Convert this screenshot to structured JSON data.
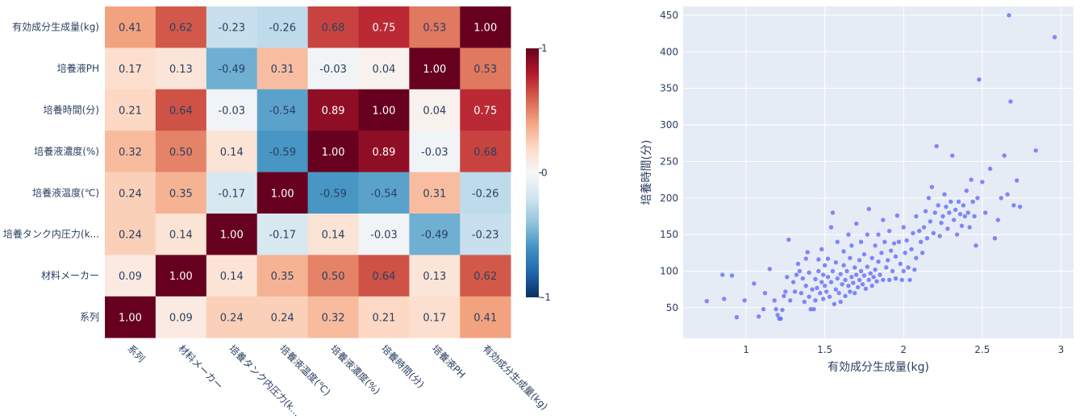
{
  "chart_data": [
    {
      "type": "heatmap",
      "title": "",
      "x_labels": [
        "系列",
        "材料メーカー",
        "培養タンク内圧力(k...",
        "培養液温度(℃)",
        "培養液濃度(%)",
        "培養時間(分)",
        "培養液PH",
        "有効成分生成量(kg)"
      ],
      "y_labels_top_to_bottom": [
        "有効成分生成量(kg)",
        "培養液PH",
        "培養時間(分)",
        "培養液濃度(%)",
        "培養液温度(℃)",
        "培養タンク内圧力(k...",
        "材料メーカー",
        "系列"
      ],
      "z": [
        [
          "0.41",
          "0.62",
          "-0.23",
          "-0.26",
          "0.68",
          "0.75",
          "0.53",
          "1.00"
        ],
        [
          "0.17",
          "0.13",
          "-0.49",
          "0.31",
          "-0.03",
          "0.04",
          "1.00",
          "0.53"
        ],
        [
          "0.21",
          "0.64",
          "-0.03",
          "-0.54",
          "0.89",
          "1.00",
          "0.04",
          "0.75"
        ],
        [
          "0.32",
          "0.50",
          "0.14",
          "-0.59",
          "1.00",
          "0.89",
          "-0.03",
          "0.68"
        ],
        [
          "0.24",
          "0.35",
          "-0.17",
          "1.00",
          "-0.59",
          "-0.54",
          "0.31",
          "-0.26"
        ],
        [
          "0.24",
          "0.14",
          "1.00",
          "-0.17",
          "0.14",
          "-0.03",
          "-0.49",
          "-0.23"
        ],
        [
          "0.09",
          "1.00",
          "0.14",
          "0.35",
          "0.50",
          "0.64",
          "0.13",
          "0.62"
        ],
        [
          "1.00",
          "0.09",
          "0.24",
          "0.24",
          "0.32",
          "0.21",
          "0.17",
          "0.41"
        ]
      ],
      "colorscale": "RdBu_r",
      "zmin": -1,
      "zmax": 1,
      "colorbar_ticks": [
        "1",
        "0",
        "-1"
      ]
    },
    {
      "type": "scatter",
      "xlabel": "有効成分生成量(kg)",
      "ylabel": "培養時間(分)",
      "xlim": [
        0.6,
        3.08
      ],
      "ylim": [
        8,
        462
      ],
      "x_ticks": [
        "1",
        "1.5",
        "2",
        "2.5",
        "3"
      ],
      "y_ticks": [
        "50",
        "100",
        "150",
        "200",
        "250",
        "300",
        "350",
        "400",
        "450"
      ],
      "marker_color": "#636efa",
      "grid": true,
      "points": [
        [
          0.75,
          59
        ],
        [
          0.85,
          95
        ],
        [
          0.86,
          62
        ],
        [
          0.91,
          94
        ],
        [
          0.94,
          37
        ],
        [
          0.99,
          60
        ],
        [
          1.05,
          83
        ],
        [
          1.08,
          38
        ],
        [
          1.11,
          48
        ],
        [
          1.12,
          70
        ],
        [
          1.15,
          103
        ],
        [
          1.18,
          60
        ],
        [
          1.19,
          48
        ],
        [
          1.2,
          40
        ],
        [
          1.21,
          35
        ],
        [
          1.22,
          35
        ],
        [
          1.23,
          47
        ],
        [
          1.24,
          66
        ],
        [
          1.25,
          72
        ],
        [
          1.26,
          92
        ],
        [
          1.27,
          143
        ],
        [
          1.28,
          60
        ],
        [
          1.3,
          85
        ],
        [
          1.31,
          72
        ],
        [
          1.32,
          95
        ],
        [
          1.33,
          110
        ],
        [
          1.34,
          100
        ],
        [
          1.35,
          70
        ],
        [
          1.36,
          90
        ],
        [
          1.37,
          58
        ],
        [
          1.38,
          80
        ],
        [
          1.38,
          117
        ],
        [
          1.39,
          126
        ],
        [
          1.4,
          65
        ],
        [
          1.4,
          98
        ],
        [
          1.41,
          48
        ],
        [
          1.42,
          75
        ],
        [
          1.43,
          48
        ],
        [
          1.44,
          60
        ],
        [
          1.44,
          89
        ],
        [
          1.45,
          77
        ],
        [
          1.46,
          100
        ],
        [
          1.46,
          116
        ],
        [
          1.47,
          70
        ],
        [
          1.48,
          85
        ],
        [
          1.48,
          130
        ],
        [
          1.49,
          95
        ],
        [
          1.49,
          62
        ],
        [
          1.5,
          80
        ],
        [
          1.5,
          108
        ],
        [
          1.51,
          72
        ],
        [
          1.52,
          92
        ],
        [
          1.52,
          117
        ],
        [
          1.53,
          65
        ],
        [
          1.54,
          85
        ],
        [
          1.54,
          160
        ],
        [
          1.55,
          100
        ],
        [
          1.55,
          180
        ],
        [
          1.56,
          55
        ],
        [
          1.57,
          75
        ],
        [
          1.57,
          112
        ],
        [
          1.58,
          90
        ],
        [
          1.58,
          140
        ],
        [
          1.59,
          70
        ],
        [
          1.6,
          96
        ],
        [
          1.6,
          58
        ],
        [
          1.61,
          82
        ],
        [
          1.62,
          108
        ],
        [
          1.62,
          127
        ],
        [
          1.63,
          66
        ],
        [
          1.63,
          88
        ],
        [
          1.64,
          100
        ],
        [
          1.65,
          80
        ],
        [
          1.65,
          150
        ],
        [
          1.66,
          72
        ],
        [
          1.66,
          118
        ],
        [
          1.67,
          92
        ],
        [
          1.67,
          135
        ],
        [
          1.68,
          84
        ],
        [
          1.69,
          105
        ],
        [
          1.69,
          70
        ],
        [
          1.7,
          95
        ],
        [
          1.7,
          165
        ],
        [
          1.71,
          78
        ],
        [
          1.72,
          115
        ],
        [
          1.72,
          88
        ],
        [
          1.73,
          100
        ],
        [
          1.73,
          140
        ],
        [
          1.74,
          82
        ],
        [
          1.75,
          123
        ],
        [
          1.75,
          94
        ],
        [
          1.76,
          76
        ],
        [
          1.77,
          106
        ],
        [
          1.77,
          150
        ],
        [
          1.78,
          88
        ],
        [
          1.78,
          185
        ],
        [
          1.79,
          97
        ],
        [
          1.8,
          118
        ],
        [
          1.8,
          80
        ],
        [
          1.81,
          92
        ],
        [
          1.82,
          135
        ],
        [
          1.82,
          102
        ],
        [
          1.83,
          86
        ],
        [
          1.84,
          113
        ],
        [
          1.84,
          150
        ],
        [
          1.85,
          95
        ],
        [
          1.86,
          125
        ],
        [
          1.87,
          88
        ],
        [
          1.87,
          170
        ],
        [
          1.88,
          140
        ],
        [
          1.89,
          105
        ],
        [
          1.9,
          115
        ],
        [
          1.91,
          88
        ],
        [
          1.91,
          155
        ],
        [
          1.92,
          128
        ],
        [
          1.93,
          100
        ],
        [
          1.94,
          138
        ],
        [
          1.95,
          90
        ],
        [
          1.95,
          120
        ],
        [
          1.96,
          176
        ],
        [
          1.97,
          140
        ],
        [
          1.98,
          110
        ],
        [
          1.99,
          88
        ],
        [
          2.0,
          100
        ],
        [
          2.0,
          160
        ],
        [
          2.01,
          125
        ],
        [
          2.02,
          142
        ],
        [
          2.03,
          105
        ],
        [
          2.04,
          88
        ],
        [
          2.05,
          130
        ],
        [
          2.06,
          152
        ],
        [
          2.07,
          102
        ],
        [
          2.08,
          118
        ],
        [
          2.08,
          175
        ],
        [
          2.1,
          155
        ],
        [
          2.11,
          140
        ],
        [
          2.12,
          125
        ],
        [
          2.13,
          160
        ],
        [
          2.14,
          182
        ],
        [
          2.15,
          145
        ],
        [
          2.16,
          200
        ],
        [
          2.17,
          168
        ],
        [
          2.18,
          215
        ],
        [
          2.19,
          152
        ],
        [
          2.2,
          180
        ],
        [
          2.21,
          271
        ],
        [
          2.22,
          190
        ],
        [
          2.23,
          148
        ],
        [
          2.24,
          166
        ],
        [
          2.25,
          175
        ],
        [
          2.26,
          205
        ],
        [
          2.27,
          188
        ],
        [
          2.28,
          158
        ],
        [
          2.29,
          180
        ],
        [
          2.3,
          195
        ],
        [
          2.31,
          258
        ],
        [
          2.32,
          170
        ],
        [
          2.33,
          184
        ],
        [
          2.34,
          150
        ],
        [
          2.35,
          195
        ],
        [
          2.36,
          178
        ],
        [
          2.37,
          162
        ],
        [
          2.38,
          190
        ],
        [
          2.39,
          175
        ],
        [
          2.4,
          210
        ],
        [
          2.41,
          180
        ],
        [
          2.42,
          160
        ],
        [
          2.43,
          225
        ],
        [
          2.44,
          195
        ],
        [
          2.45,
          175
        ],
        [
          2.46,
          135
        ],
        [
          2.47,
          200
        ],
        [
          2.48,
          362
        ],
        [
          2.5,
          222
        ],
        [
          2.52,
          180
        ],
        [
          2.55,
          240
        ],
        [
          2.58,
          145
        ],
        [
          2.6,
          170
        ],
        [
          2.62,
          200
        ],
        [
          2.64,
          258
        ],
        [
          2.66,
          205
        ],
        [
          2.67,
          450
        ],
        [
          2.68,
          332
        ],
        [
          2.7,
          190
        ],
        [
          2.72,
          224
        ],
        [
          2.74,
          188
        ],
        [
          2.84,
          265
        ],
        [
          2.96,
          420
        ]
      ]
    }
  ]
}
